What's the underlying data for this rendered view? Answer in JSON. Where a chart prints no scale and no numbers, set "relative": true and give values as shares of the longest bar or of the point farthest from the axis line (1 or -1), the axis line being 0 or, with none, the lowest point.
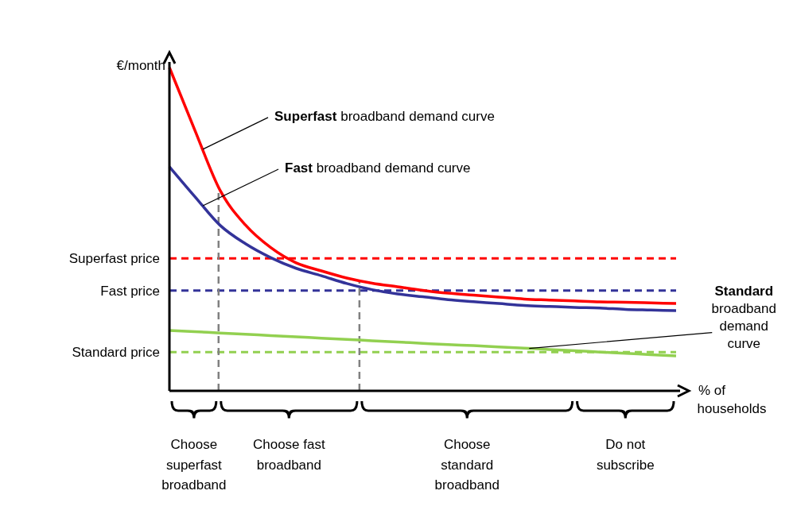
{
  "chart_data": {
    "type": "line",
    "relative": true,
    "ylabel": "€/month",
    "xlabel": "% of households",
    "line_style": "solid",
    "marker": "none",
    "categories": [
      null,
      null,
      null,
      null,
      null,
      null,
      null,
      null,
      null,
      null,
      null,
      null,
      null,
      null,
      null,
      null,
      null,
      null,
      null,
      null,
      null
    ],
    "series": [
      {
        "color": "#ff0000",
        "values": [
          1.0,
          0.807,
          0.62,
          0.513,
          0.443,
          0.396,
          0.371,
          0.349,
          0.333,
          0.322,
          0.311,
          0.302,
          0.296,
          0.29,
          0.284,
          0.281,
          0.278,
          0.275,
          0.274,
          0.272,
          0.27
        ]
      },
      {
        "color": "#333399",
        "values": [
          0.693,
          0.601,
          0.512,
          0.455,
          0.412,
          0.379,
          0.356,
          0.332,
          0.313,
          0.3,
          0.291,
          0.282,
          0.276,
          0.27,
          0.264,
          0.261,
          0.258,
          0.256,
          0.252,
          0.25,
          0.248
        ]
      },
      {
        "color": "#92d050",
        "values": [
          0.187,
          0.183,
          0.179,
          0.175,
          0.171,
          0.167,
          0.163,
          0.159,
          0.155,
          0.151,
          0.147,
          0.143,
          0.14,
          0.136,
          0.132,
          0.128,
          0.124,
          0.12,
          0.116,
          0.112,
          0.108
        ]
      }
    ],
    "ref_lines": [
      {
        "axis": "y",
        "value": 0.41,
        "label": "Superfast price",
        "color": "#ff0000",
        "line_style": "dashed"
      },
      {
        "axis": "y",
        "value": 0.31,
        "label": "Fast price",
        "color": "#333399",
        "line_style": "dashed"
      },
      {
        "axis": "y",
        "value": 0.12,
        "label": "Standard price",
        "color": "#92d050",
        "line_style": "dashed"
      }
    ],
    "annotations": [
      "Superfast broadband demand curve",
      "Fast broadband demand curve",
      "Standard broadband demand curve",
      "Choose superfast broadband",
      "Choose fast broadband",
      "Choose standard broadband",
      "Do not subscribe"
    ]
  }
}
